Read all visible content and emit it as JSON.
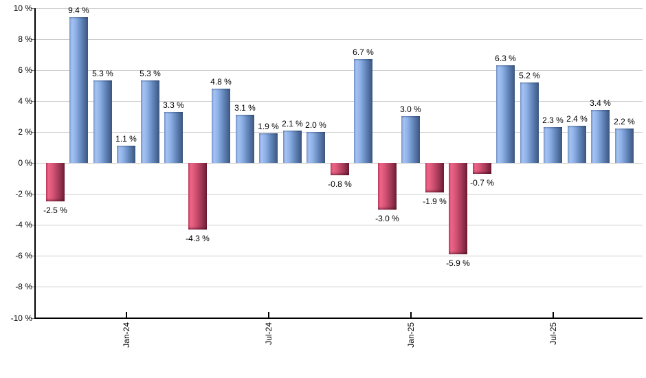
{
  "chart_data": {
    "type": "bar",
    "title": "",
    "xlabel": "",
    "ylabel": "",
    "ylim": [
      -10,
      10
    ],
    "y_tick_step": 2,
    "grid": true,
    "legend_position": "none",
    "y_tick_labels": [
      "10 %",
      "8 %",
      "6 %",
      "4 %",
      "2 %",
      "0 %",
      "-2 %",
      "-4 %",
      "-6 %",
      "-8 %",
      "-10 %"
    ],
    "y_tick_values": [
      10,
      8,
      6,
      4,
      2,
      0,
      -2,
      -4,
      -6,
      -8,
      -10
    ],
    "values": [
      -2.5,
      9.4,
      5.3,
      1.1,
      5.3,
      3.3,
      -4.3,
      4.8,
      3.1,
      1.9,
      2.1,
      2.0,
      -0.8,
      6.7,
      -3.0,
      3.0,
      -1.9,
      -5.9,
      -0.7,
      6.3,
      5.2,
      2.3,
      2.4,
      3.4,
      2.2
    ],
    "data_labels": [
      "-2.5 %",
      "9.4 %",
      "5.3 %",
      "1.1 %",
      "5.3 %",
      "3.3 %",
      "-4.3 %",
      "4.8 %",
      "3.1 %",
      "1.9 %",
      "2.1 %",
      "2.0 %",
      "-0.8 %",
      "6.7 %",
      "-3.0 %",
      "3.0 %",
      "-1.9 %",
      "-5.9 %",
      "-0.7 %",
      "6.3 %",
      "5.2 %",
      "2.3 %",
      "2.4 %",
      "3.4 %",
      "2.2 %"
    ],
    "x_tick_labels": [
      {
        "label": "Jan-24",
        "bar_index": 3
      },
      {
        "label": "Jul-24",
        "bar_index": 9
      },
      {
        "label": "Jan-25",
        "bar_index": 15
      },
      {
        "label": "Jul-25",
        "bar_index": 21
      }
    ],
    "colors": {
      "positive_edge": "#7597cf",
      "positive_light": "#a6c2f1",
      "positive_mid": "#8cb0e6",
      "positive_deep": "#5e81b5",
      "positive_dark": "#3c567f",
      "negative_edge": "#c84064",
      "negative_light": "#ee6589",
      "negative_mid": "#d95677",
      "negative_deep": "#a63a59",
      "negative_dark": "#6d1d35",
      "gridline": "#cccccc",
      "axis": "#000000"
    }
  }
}
